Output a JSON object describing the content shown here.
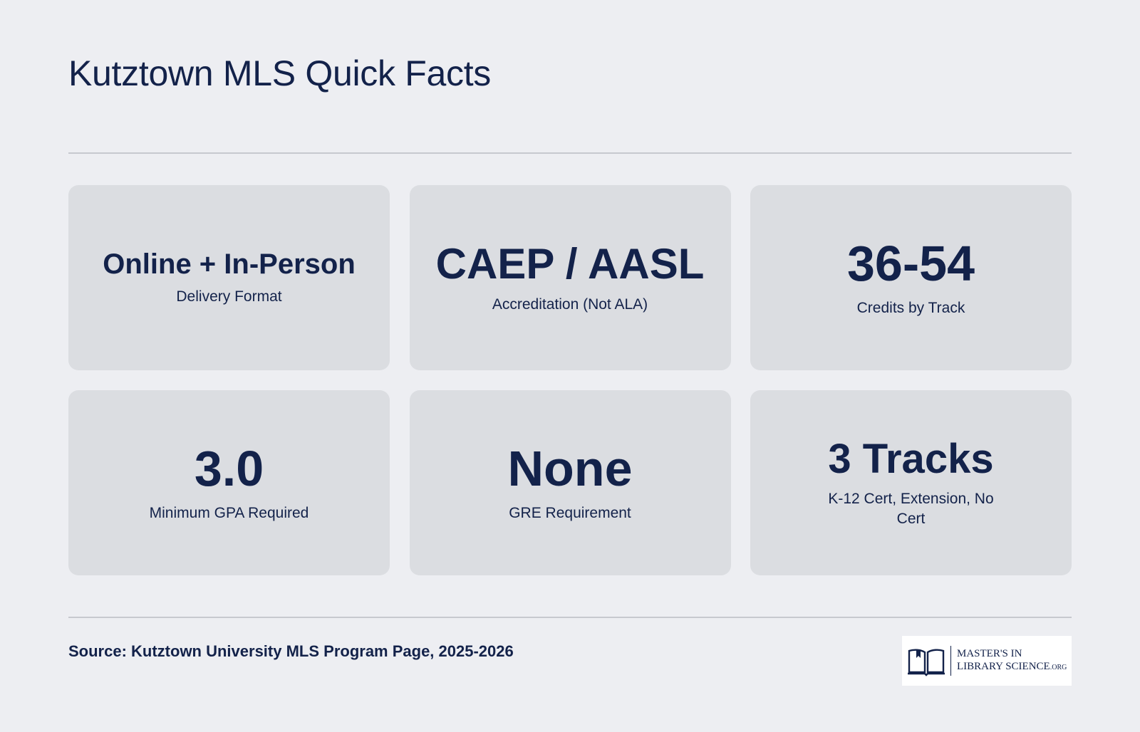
{
  "header": {
    "title": "Kutztown MLS Quick Facts"
  },
  "facts": [
    {
      "value": "Online + In-Person",
      "label": "Delivery Format"
    },
    {
      "value": "CAEP / AASL",
      "label": "Accreditation (Not ALA)"
    },
    {
      "value": "36-54",
      "label": "Credits by Track"
    },
    {
      "value": "3.0",
      "label": "Minimum GPA Required"
    },
    {
      "value": "None",
      "label": "GRE Requirement"
    },
    {
      "value": "3 Tracks",
      "label": "K-12 Cert, Extension, No Cert"
    }
  ],
  "footer": {
    "source": "Source: Kutztown University MLS Program Page, 2025-2026",
    "logo": {
      "icon": "open-book-icon",
      "line1": "MASTER'S IN",
      "line2": "LIBRARY SCIENCE",
      "suffix": ".ORG"
    }
  },
  "colors": {
    "background": "#edeef2",
    "card": "#dbdde1",
    "text": "#13224a",
    "divider": "#c7c9cf"
  }
}
